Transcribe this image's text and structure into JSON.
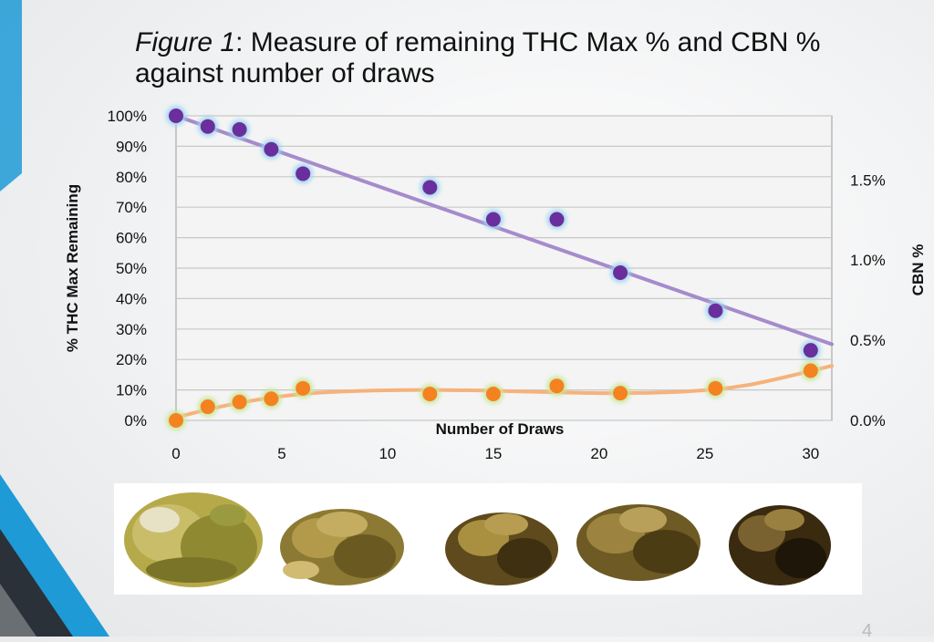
{
  "title": {
    "prefix": "Figure 1",
    "rest": ": Measure of remaining THC Max % and CBN % against number of draws"
  },
  "slide_number": "4",
  "colors": {
    "thc": "#6a2f9c",
    "thc_trend": "#a58bcc",
    "cbn": "#f58220",
    "cbn_trend": "#f6b27a",
    "thc_glow": "#9fd4f2",
    "cbn_glow": "#c9e79a",
    "grid": "#c8c8c8",
    "plot_bg": "#f4f4f4",
    "accent_blue": "#1e9ad6",
    "accent_dark": "#2b3138"
  },
  "chart_data": {
    "type": "scatter",
    "xlabel": "Number of Draws",
    "ylabel_left": "% THC Max Remaining",
    "ylabel_right": "CBN %",
    "xlim": [
      0,
      31
    ],
    "ylim_left": [
      0,
      100
    ],
    "ylim_right": [
      0,
      1.9
    ],
    "x_ticks": [
      0,
      5,
      10,
      15,
      20,
      25,
      30
    ],
    "y_ticks_left": [
      0,
      10,
      20,
      30,
      40,
      50,
      60,
      70,
      80,
      90,
      100
    ],
    "y_ticks_right": [
      0.0,
      0.5,
      1.0,
      1.5
    ],
    "y_tick_labels_left": [
      "0%",
      "10%",
      "20%",
      "30%",
      "40%",
      "50%",
      "60%",
      "70%",
      "80%",
      "90%",
      "100%"
    ],
    "y_tick_labels_right": [
      "0.0%",
      "0.5%",
      "1.0%",
      "1.5%"
    ],
    "grid": true,
    "series": [
      {
        "key": "thc",
        "axis": "left",
        "x": [
          0,
          1.5,
          3,
          4.5,
          6,
          12,
          15,
          18,
          21,
          25.5,
          30
        ],
        "y": [
          100,
          96.5,
          95.5,
          89,
          81,
          76.5,
          66,
          66,
          48.5,
          36,
          23
        ],
        "trendline": {
          "type": "linear",
          "x": [
            0,
            31
          ],
          "y": [
            100,
            25
          ]
        }
      },
      {
        "key": "cbn",
        "axis": "right",
        "x": [
          0,
          1.5,
          3,
          4.5,
          6,
          12,
          15,
          18,
          21,
          25.5,
          30
        ],
        "y": [
          0.0,
          0.085,
          0.115,
          0.135,
          0.2,
          0.165,
          0.165,
          0.215,
          0.17,
          0.2,
          0.31
        ],
        "trendline": {
          "type": "polynomial",
          "x": [
            0,
            3,
            6,
            9,
            12,
            15,
            18,
            21,
            24,
            27,
            31
          ],
          "y": [
            0.02,
            0.11,
            0.165,
            0.185,
            0.19,
            0.185,
            0.175,
            0.17,
            0.18,
            0.22,
            0.34
          ]
        }
      }
    ]
  },
  "photo_strip": {
    "samples": [
      "sample-fresh",
      "sample-draw-a",
      "sample-draw-b",
      "sample-draw-c",
      "sample-draw-d"
    ]
  }
}
